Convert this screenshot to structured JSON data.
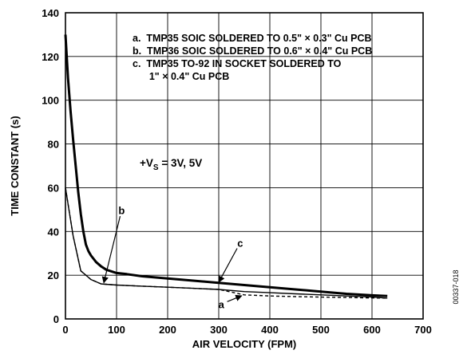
{
  "chart_data": {
    "type": "line",
    "xlabel": "AIR VELOCITY (FPM)",
    "ylabel": "TIME CONSTANT (s)",
    "xlim": [
      0,
      700
    ],
    "ylim": [
      0,
      140
    ],
    "x_ticks": [
      "0",
      "100",
      "200",
      "300",
      "400",
      "500",
      "600",
      "700"
    ],
    "y_ticks": [
      "0",
      "20",
      "40",
      "60",
      "80",
      "100",
      "120",
      "140"
    ],
    "x_tick_values": [
      0,
      100,
      200,
      300,
      400,
      500,
      600,
      700
    ],
    "y_tick_values": [
      0,
      20,
      40,
      60,
      80,
      100,
      120,
      140
    ],
    "grid": true,
    "legend": {
      "position": "top-right",
      "entries": [
        "a.  TMP35 SOIC SOLDERED TO 0.5\" × 0.3\" Cu PCB",
        "b.  TMP36 SOIC SOLDERED TO 0.6\" × 0.4\" Cu PCB",
        "c.  TMP35 TO-92 IN SOCKET SOLDERED TO",
        "      1\" × 0.4\" Cu PCB"
      ]
    },
    "annotations": {
      "supply_prefix": "+V",
      "supply_subscript": "S",
      "supply_suffix": " = 3V, 5V",
      "figure_id": "00337-018"
    },
    "series": [
      {
        "name": "a",
        "style": "dashed",
        "stroke_width": 1.4,
        "x": [
          0,
          15,
          30,
          50,
          70,
          100,
          150,
          200,
          250,
          300,
          350,
          400,
          450,
          500,
          550,
          600,
          630
        ],
        "y": [
          60,
          38,
          22,
          18,
          16,
          15.5,
          15,
          14.5,
          14,
          13.5,
          11,
          10.5,
          10.2,
          10,
          9.8,
          9.6,
          9.5
        ]
      },
      {
        "name": "b",
        "style": "solid",
        "stroke_width": 1.4,
        "x": [
          0,
          15,
          30,
          50,
          70,
          100,
          150,
          200,
          250,
          300,
          350,
          400,
          450,
          500,
          550,
          600,
          630
        ],
        "y": [
          60,
          38,
          22,
          18,
          16,
          15.5,
          15,
          14.5,
          14,
          13.5,
          12.5,
          12,
          11.5,
          11,
          10.5,
          10,
          9.5
        ]
      },
      {
        "name": "c",
        "style": "solid",
        "stroke_width": 3,
        "x": [
          0,
          5,
          10,
          15,
          20,
          25,
          30,
          35,
          40,
          45,
          50,
          60,
          70,
          80,
          100,
          120,
          150,
          200,
          250,
          300,
          350,
          400,
          450,
          500,
          550,
          600,
          630
        ],
        "y": [
          130,
          110,
          95,
          82,
          70,
          58,
          48,
          40,
          34,
          31,
          29,
          26,
          24,
          22.5,
          21,
          20.5,
          19.5,
          18.5,
          17.5,
          16.5,
          15.5,
          14.5,
          13.5,
          12.5,
          11.5,
          10.8,
          10.5
        ]
      }
    ],
    "series_tags": [
      {
        "label": "a",
        "x_text": 305,
        "y_text": 5,
        "x_tip": 345,
        "y_tip": 10.6
      },
      {
        "label": "b",
        "x_text": 110,
        "y_text": 48,
        "x_tip": 75,
        "y_tip": 16.5
      },
      {
        "label": "c",
        "x_text": 342,
        "y_text": 33,
        "x_tip": 300,
        "y_tip": 16.8
      }
    ]
  }
}
